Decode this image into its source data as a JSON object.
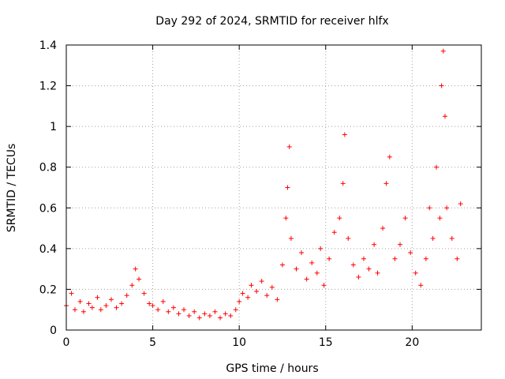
{
  "chart_data": {
    "type": "scatter",
    "title": "Day 292 of 2024, SRMTID for receiver hlfx",
    "xlabel": "GPS time / hours",
    "ylabel": "SRMTID / TECUs",
    "xlim": [
      0,
      24
    ],
    "ylim": [
      0,
      1.4
    ],
    "xticks": [
      0,
      5,
      10,
      15,
      20
    ],
    "xtick_labels": [
      "0",
      "5",
      "10",
      "15",
      "20"
    ],
    "yticks": [
      0,
      0.2,
      0.4,
      0.6,
      0.8,
      1.0,
      1.2,
      1.4
    ],
    "ytick_labels": [
      "0",
      "0.2",
      "0.4",
      "0.6",
      "0.8",
      "1",
      "1.2",
      "1.4"
    ],
    "grid": true,
    "marker": "plus",
    "color": "#ff0000",
    "series": [
      {
        "name": "SRMTID",
        "x": [
          0.0,
          0.3,
          0.5,
          0.8,
          1.0,
          1.3,
          1.5,
          1.8,
          2.0,
          2.3,
          2.6,
          2.9,
          3.2,
          3.5,
          3.8,
          4.0,
          4.2,
          4.5,
          4.8,
          5.0,
          5.3,
          5.6,
          5.9,
          6.2,
          6.5,
          6.8,
          7.1,
          7.4,
          7.7,
          8.0,
          8.3,
          8.6,
          8.9,
          9.2,
          9.5,
          9.8,
          10.0,
          10.2,
          10.5,
          10.7,
          11.0,
          11.3,
          11.6,
          11.9,
          12.2,
          12.5,
          12.7,
          12.8,
          12.9,
          13.0,
          13.3,
          13.6,
          13.9,
          14.2,
          14.5,
          14.7,
          14.9,
          15.2,
          15.5,
          15.8,
          16.0,
          16.1,
          16.3,
          16.6,
          16.9,
          17.2,
          17.5,
          17.8,
          18.0,
          18.3,
          18.5,
          18.7,
          19.0,
          19.3,
          19.6,
          19.9,
          20.2,
          20.5,
          20.8,
          21.0,
          21.2,
          21.4,
          21.6,
          21.7,
          21.8,
          21.9,
          22.0,
          22.3,
          22.6,
          22.8
        ],
        "y": [
          0.12,
          0.18,
          0.1,
          0.14,
          0.09,
          0.13,
          0.11,
          0.16,
          0.1,
          0.12,
          0.15,
          0.11,
          0.13,
          0.17,
          0.22,
          0.3,
          0.25,
          0.18,
          0.13,
          0.12,
          0.1,
          0.14,
          0.09,
          0.11,
          0.08,
          0.1,
          0.07,
          0.09,
          0.06,
          0.08,
          0.07,
          0.09,
          0.06,
          0.08,
          0.07,
          0.1,
          0.14,
          0.18,
          0.16,
          0.22,
          0.19,
          0.24,
          0.17,
          0.21,
          0.15,
          0.32,
          0.55,
          0.7,
          0.9,
          0.45,
          0.3,
          0.38,
          0.25,
          0.33,
          0.28,
          0.4,
          0.22,
          0.35,
          0.48,
          0.55,
          0.72,
          0.96,
          0.45,
          0.32,
          0.26,
          0.35,
          0.3,
          0.42,
          0.28,
          0.5,
          0.72,
          0.85,
          0.35,
          0.42,
          0.55,
          0.38,
          0.28,
          0.22,
          0.35,
          0.6,
          0.45,
          0.8,
          0.55,
          1.2,
          1.37,
          1.05,
          0.6,
          0.45,
          0.35,
          0.62
        ]
      }
    ]
  }
}
